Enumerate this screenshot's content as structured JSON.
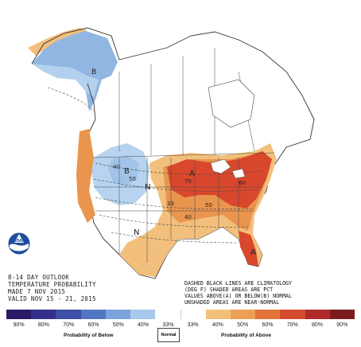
{
  "title": {
    "line1": "8-14 DAY OUTLOOK",
    "line2": "TEMPERATURE PROBABILITY",
    "line3": "MADE  7 NOV 2015",
    "line4": "VALID  NOV 15 - 21, 2015"
  },
  "note": "DASHED BLACK LINES ARE CLIMATOLOGY\n(DEG F) SHADED AREAS ARE PCT\nVALUES ABOVE(A) OR BELOW(B) NORMAL\nUNSHADED AREAS ARE NEAR-NORMAL",
  "map_labels": {
    "A": "A",
    "B": "B",
    "N": "N",
    "p40": "40",
    "p50": "50",
    "p60": "60",
    "p70": "70",
    "p33": "33"
  },
  "legend": {
    "ticks": [
      "90%",
      "80%",
      "70%",
      "60%",
      "50%",
      "40%",
      "33%",
      "33%",
      "40%",
      "50%",
      "60%",
      "70%",
      "80%",
      "90%"
    ],
    "colors": [
      "#2b1a68",
      "#332f8a",
      "#3d4fa6",
      "#5277c2",
      "#7ca3dc",
      "#a8c8ec",
      "#ffffff",
      "#ffffff",
      "#f2c07c",
      "#eda054",
      "#e2733a",
      "#d44a2c",
      "#b02a2a",
      "#7a1c1c"
    ],
    "below_label": "Probability of Below",
    "normal_label": "Normal",
    "above_label": "Probability of Above"
  },
  "logo": {
    "text": "NOAA"
  },
  "colors": {
    "below_light": "#b7d3ef",
    "below_mid": "#7ca9dc",
    "above_light": "#f2c07c",
    "above_mid": "#e9954e",
    "above_dark": "#d9472c",
    "water": "#ffffff"
  }
}
